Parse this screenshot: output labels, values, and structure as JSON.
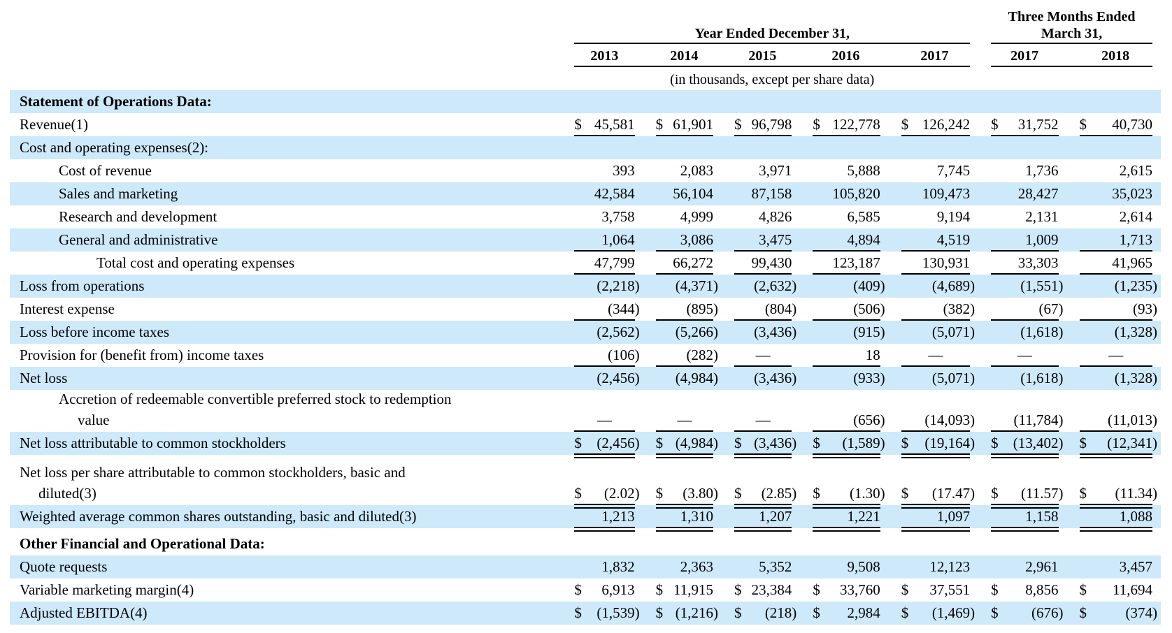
{
  "document": {
    "colors": {
      "stripe_blue": "#CDE9FA",
      "rule_black": "#000000",
      "text": "#000000"
    },
    "table": {
      "header": {
        "groups": [
          {
            "lines": [
              "Year Ended December 31,"
            ],
            "span": 5
          },
          {
            "lines": [
              "Three Months Ended",
              "March 31,"
            ],
            "span": 2
          }
        ],
        "years": [
          "2013",
          "2014",
          "2015",
          "2016",
          "2017",
          "2017",
          "2018"
        ],
        "units_note": "(in thousands, except per share data)"
      },
      "rows": [
        {
          "label": "Statement of Operations Data:",
          "bold": true,
          "stripe": true,
          "ind": 0,
          "rule": "none",
          "values": null
        },
        {
          "label": "Revenue(1)",
          "bold": false,
          "stripe": false,
          "ind": 0,
          "rule": "single",
          "currency": "$",
          "values": [
            "45,581",
            "61,901",
            "96,798",
            "122,778",
            "126,242",
            "31,752",
            "40,730"
          ]
        },
        {
          "label": "Cost and operating expenses(2):",
          "bold": false,
          "stripe": true,
          "ind": 0,
          "rule": "none",
          "values": null
        },
        {
          "label": "Cost of revenue",
          "bold": false,
          "stripe": false,
          "ind": 1,
          "rule": "none",
          "values": [
            "393",
            "2,083",
            "3,971",
            "5,888",
            "7,745",
            "1,736",
            "2,615"
          ]
        },
        {
          "label": "Sales and marketing",
          "bold": false,
          "stripe": true,
          "ind": 1,
          "rule": "none",
          "values": [
            "42,584",
            "56,104",
            "87,158",
            "105,820",
            "109,473",
            "28,427",
            "35,023"
          ]
        },
        {
          "label": "Research and development",
          "bold": false,
          "stripe": false,
          "ind": 1,
          "rule": "none",
          "values": [
            "3,758",
            "4,999",
            "4,826",
            "6,585",
            "9,194",
            "2,131",
            "2,614"
          ]
        },
        {
          "label": "General and administrative",
          "bold": false,
          "stripe": true,
          "ind": 1,
          "rule": "single",
          "values": [
            "1,064",
            "3,086",
            "3,475",
            "4,894",
            "4,519",
            "1,009",
            "1,713"
          ]
        },
        {
          "label": "Total cost and operating expenses",
          "bold": false,
          "stripe": false,
          "ind": 2,
          "rule": "single",
          "values": [
            "47,799",
            "66,272",
            "99,430",
            "123,187",
            "130,931",
            "33,303",
            "41,965"
          ]
        },
        {
          "label": "Loss from operations",
          "bold": false,
          "stripe": true,
          "ind": 0,
          "rule": "none",
          "values": [
            "(2,218)",
            "(4,371)",
            "(2,632)",
            "(409)",
            "(4,689)",
            "(1,551)",
            "(1,235)"
          ]
        },
        {
          "label": "Interest expense",
          "bold": false,
          "stripe": false,
          "ind": 0,
          "rule": "single",
          "values": [
            "(344)",
            "(895)",
            "(804)",
            "(506)",
            "(382)",
            "(67)",
            "(93)"
          ]
        },
        {
          "label": "Loss before income taxes",
          "bold": false,
          "stripe": true,
          "ind": 0,
          "rule": "none",
          "values": [
            "(2,562)",
            "(5,266)",
            "(3,436)",
            "(915)",
            "(5,071)",
            "(1,618)",
            "(1,328)"
          ]
        },
        {
          "label": "Provision for (benefit from) income taxes",
          "bold": false,
          "stripe": false,
          "ind": 0,
          "rule": "single",
          "values": [
            "(106)",
            "(282)",
            "—",
            "18",
            "—",
            "—",
            "—"
          ]
        },
        {
          "label": "Net loss",
          "bold": false,
          "stripe": true,
          "ind": 0,
          "rule": "none",
          "values": [
            "(2,456)",
            "(4,984)",
            "(3,436)",
            "(933)",
            "(5,071)",
            "(1,618)",
            "(1,328)"
          ]
        },
        {
          "label": "Accretion of redeemable convertible preferred stock to redemption",
          "label2": "value",
          "bold": false,
          "stripe": false,
          "ind": 1,
          "ind2": "sub-b",
          "rule": "single",
          "values": [
            "—",
            "—",
            "—",
            "(656)",
            "(14,093)",
            "(11,784)",
            "(11,013)"
          ]
        },
        {
          "label": "Net loss attributable to common stockholders",
          "bold": false,
          "stripe": true,
          "ind": 0,
          "rule": "double",
          "currency": "$",
          "values": [
            "(2,456)",
            "(4,984)",
            "(3,436)",
            "(1,589)",
            "(19,164)",
            "(13,402)",
            "(12,341)"
          ]
        },
        {
          "label": "Net loss per share attributable to common stockholders, basic and",
          "label2": "diluted(3)",
          "bold": false,
          "stripe": false,
          "ind": 0,
          "ind2": "sub-a",
          "rule": "double",
          "currency": "$",
          "values": [
            "(2.02)",
            "(3.80)",
            "(2.85)",
            "(1.30)",
            "(17.47)",
            "(11.57)",
            "(11.34)"
          ]
        },
        {
          "label": "Weighted average common shares outstanding, basic and diluted(3)",
          "bold": false,
          "stripe": true,
          "ind": 0,
          "rule": "double",
          "values": [
            "1,213",
            "1,310",
            "1,207",
            "1,221",
            "1,097",
            "1,158",
            "1,088"
          ]
        },
        {
          "label": "Other Financial and Operational Data:",
          "bold": true,
          "stripe": false,
          "ind": 0,
          "rule": "none",
          "values": null
        },
        {
          "label": "Quote requests",
          "bold": false,
          "stripe": true,
          "ind": 0,
          "rule": "none",
          "values": [
            "1,832",
            "2,363",
            "5,352",
            "9,508",
            "12,123",
            "2,961",
            "3,457"
          ]
        },
        {
          "label": "Variable marketing margin(4)",
          "bold": false,
          "stripe": false,
          "ind": 0,
          "rule": "none",
          "currency": "$",
          "values": [
            "6,913",
            "11,915",
            "23,384",
            "33,760",
            "37,551",
            "8,856",
            "11,694"
          ]
        },
        {
          "label": "Adjusted EBITDA(4)",
          "bold": false,
          "stripe": true,
          "ind": 0,
          "rule": "none",
          "currency": "$",
          "values": [
            "(1,539)",
            "(1,216)",
            "(218)",
            "2,984",
            "(1,469)",
            "(676)",
            "(374)"
          ]
        }
      ]
    }
  }
}
